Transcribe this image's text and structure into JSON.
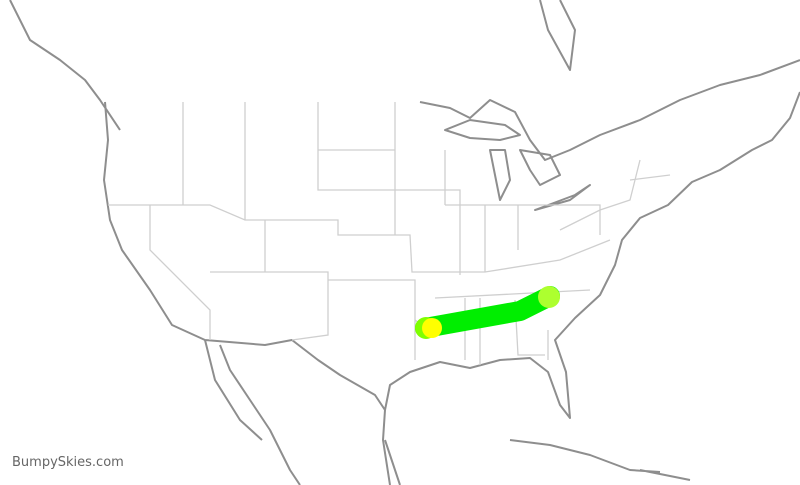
{
  "brand": "BumpySkies.com",
  "route": {
    "line_color": "#00ee00",
    "origin_marker_color": "#ffff00",
    "origin_ring_color": "#7fff00",
    "destination_marker_color": "#adff2f"
  }
}
